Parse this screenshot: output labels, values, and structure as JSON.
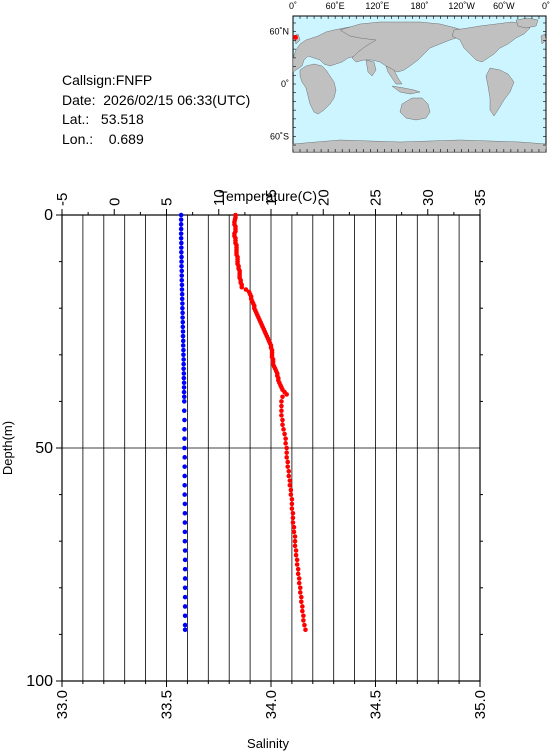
{
  "info": {
    "callsign": "Callsign:FNFP",
    "date": "Date:  2026/02/15 06:33(UTC)",
    "lat": "Lat.:   53.518",
    "lon": "Lon.:    0.689"
  },
  "map": {
    "top_labels": [
      "0˚",
      "60˚E",
      "120˚E",
      "180˚",
      "120˚W",
      "60˚W",
      "0˚"
    ],
    "left_labels": [
      "60˚N",
      "0˚",
      "60˚S"
    ],
    "station": {
      "lat": 53.518,
      "lon": 0.689
    },
    "colors": {
      "ocean": "#ccf5ff",
      "land": "#c0c0c0",
      "marker": "#ff0000"
    }
  },
  "chart_data": {
    "type": "scatter",
    "temperature_axis": {
      "label": "Temperature(C)",
      "range": [
        -5,
        35
      ],
      "ticks": [
        "-5",
        "0",
        "5",
        "10",
        "15",
        "20",
        "25",
        "30",
        "35"
      ]
    },
    "salinity_axis": {
      "label": "Salinity",
      "range": [
        33.0,
        35.0
      ],
      "ticks": [
        "33.0",
        "33.5",
        "34.0",
        "34.5",
        "35.0"
      ]
    },
    "depth_axis": {
      "label": "Depth(m)",
      "range": [
        0,
        100
      ],
      "ticks": [
        "0",
        "50",
        "100"
      ]
    },
    "series": [
      {
        "color": "#0000ff",
        "axis": "salinity",
        "points": [
          [
            33.57,
            0
          ],
          [
            33.57,
            1
          ],
          [
            33.57,
            2
          ],
          [
            33.57,
            3
          ],
          [
            33.57,
            4
          ],
          [
            33.57,
            5
          ],
          [
            33.571,
            6
          ],
          [
            33.571,
            7
          ],
          [
            33.571,
            8
          ],
          [
            33.572,
            9
          ],
          [
            33.572,
            10
          ],
          [
            33.572,
            11
          ],
          [
            33.573,
            12
          ],
          [
            33.573,
            13
          ],
          [
            33.573,
            14
          ],
          [
            33.574,
            15
          ],
          [
            33.574,
            16
          ],
          [
            33.575,
            17
          ],
          [
            33.575,
            18
          ],
          [
            33.576,
            19
          ],
          [
            33.576,
            20
          ],
          [
            33.577,
            21
          ],
          [
            33.577,
            22
          ],
          [
            33.578,
            23
          ],
          [
            33.578,
            24
          ],
          [
            33.579,
            25
          ],
          [
            33.579,
            26
          ],
          [
            33.58,
            27
          ],
          [
            33.58,
            28
          ],
          [
            33.581,
            29
          ],
          [
            33.581,
            30
          ],
          [
            33.582,
            31
          ],
          [
            33.582,
            32
          ],
          [
            33.582,
            33
          ],
          [
            33.583,
            34
          ],
          [
            33.583,
            35
          ],
          [
            33.584,
            36
          ],
          [
            33.584,
            37
          ],
          [
            33.584,
            38
          ],
          [
            33.585,
            39
          ],
          [
            33.585,
            40
          ],
          [
            33.585,
            42
          ],
          [
            33.586,
            44
          ],
          [
            33.586,
            46
          ],
          [
            33.586,
            48
          ],
          [
            33.586,
            50
          ],
          [
            33.587,
            52
          ],
          [
            33.587,
            54
          ],
          [
            33.587,
            56
          ],
          [
            33.587,
            58
          ],
          [
            33.587,
            60
          ],
          [
            33.588,
            62
          ],
          [
            33.588,
            64
          ],
          [
            33.588,
            66
          ],
          [
            33.588,
            68
          ],
          [
            33.588,
            70
          ],
          [
            33.589,
            72
          ],
          [
            33.589,
            74
          ],
          [
            33.589,
            76
          ],
          [
            33.589,
            78
          ],
          [
            33.589,
            80
          ],
          [
            33.589,
            82
          ],
          [
            33.589,
            84
          ],
          [
            33.589,
            86
          ],
          [
            33.589,
            88
          ],
          [
            33.589,
            89
          ]
        ]
      },
      {
        "color": "#ff0000",
        "axis": "temperature",
        "points": [
          [
            11.6,
            0
          ],
          [
            11.6,
            0.5
          ],
          [
            11.55,
            1
          ],
          [
            11.5,
            1.5
          ],
          [
            11.5,
            2
          ],
          [
            11.6,
            2.5
          ],
          [
            11.6,
            3
          ],
          [
            11.6,
            3.5
          ],
          [
            11.5,
            4
          ],
          [
            11.5,
            4.5
          ],
          [
            11.6,
            5
          ],
          [
            11.6,
            5.5
          ],
          [
            11.6,
            6
          ],
          [
            11.7,
            6.5
          ],
          [
            11.7,
            7
          ],
          [
            11.7,
            7.5
          ],
          [
            11.7,
            8
          ],
          [
            11.7,
            8.5
          ],
          [
            11.8,
            9
          ],
          [
            11.8,
            9.5
          ],
          [
            11.8,
            10
          ],
          [
            11.8,
            10.5
          ],
          [
            11.9,
            11
          ],
          [
            11.9,
            11.5
          ],
          [
            12.0,
            12
          ],
          [
            12.0,
            12.5
          ],
          [
            12.0,
            13
          ],
          [
            12.0,
            13.5
          ],
          [
            12.1,
            14
          ],
          [
            12.1,
            14.5
          ],
          [
            12.2,
            15
          ],
          [
            12.2,
            15.5
          ],
          [
            12.6,
            16
          ],
          [
            12.9,
            16.5
          ],
          [
            13.0,
            17
          ],
          [
            13.1,
            17.5
          ],
          [
            13.1,
            18
          ],
          [
            13.2,
            18.5
          ],
          [
            13.3,
            19
          ],
          [
            13.4,
            19.5
          ],
          [
            13.4,
            20
          ],
          [
            13.5,
            20.5
          ],
          [
            13.6,
            21
          ],
          [
            13.7,
            21.5
          ],
          [
            13.8,
            22
          ],
          [
            13.9,
            22.5
          ],
          [
            14.0,
            23
          ],
          [
            14.1,
            23.5
          ],
          [
            14.2,
            24
          ],
          [
            14.3,
            24.5
          ],
          [
            14.4,
            25
          ],
          [
            14.5,
            25.5
          ],
          [
            14.6,
            26
          ],
          [
            14.7,
            26.5
          ],
          [
            14.8,
            27
          ],
          [
            14.9,
            27.5
          ],
          [
            15.0,
            28
          ],
          [
            15.0,
            28.5
          ],
          [
            15.1,
            29
          ],
          [
            15.1,
            29.5
          ],
          [
            15.1,
            30
          ],
          [
            15.1,
            30.5
          ],
          [
            15.2,
            31
          ],
          [
            15.2,
            31.5
          ],
          [
            15.2,
            32
          ],
          [
            15.3,
            32.5
          ],
          [
            15.4,
            33
          ],
          [
            15.5,
            33.5
          ],
          [
            15.6,
            34
          ],
          [
            15.6,
            34.5
          ],
          [
            15.7,
            35
          ],
          [
            15.7,
            35.5
          ],
          [
            15.8,
            36
          ],
          [
            15.9,
            36.5
          ],
          [
            16.0,
            37
          ],
          [
            16.1,
            37.5
          ],
          [
            16.3,
            38
          ],
          [
            16.5,
            38.5
          ],
          [
            16.1,
            39
          ],
          [
            16.0,
            40
          ],
          [
            16.0,
            41
          ],
          [
            16.0,
            42
          ],
          [
            16.0,
            43
          ],
          [
            16.1,
            44
          ],
          [
            16.1,
            45
          ],
          [
            16.2,
            46
          ],
          [
            16.3,
            47
          ],
          [
            16.4,
            48
          ],
          [
            16.4,
            49
          ],
          [
            16.5,
            50
          ],
          [
            16.5,
            51
          ],
          [
            16.5,
            52
          ],
          [
            16.6,
            53
          ],
          [
            16.6,
            54
          ],
          [
            16.7,
            55
          ],
          [
            16.7,
            56
          ],
          [
            16.8,
            57
          ],
          [
            16.8,
            58
          ],
          [
            16.9,
            59
          ],
          [
            16.9,
            60
          ],
          [
            17.0,
            61
          ],
          [
            17.0,
            62
          ],
          [
            17.0,
            63
          ],
          [
            17.1,
            64
          ],
          [
            17.1,
            65
          ],
          [
            17.1,
            66
          ],
          [
            17.2,
            67
          ],
          [
            17.2,
            68
          ],
          [
            17.3,
            69
          ],
          [
            17.3,
            70
          ],
          [
            17.3,
            71
          ],
          [
            17.4,
            72
          ],
          [
            17.4,
            73
          ],
          [
            17.5,
            74
          ],
          [
            17.5,
            75
          ],
          [
            17.6,
            76
          ],
          [
            17.6,
            77
          ],
          [
            17.7,
            78
          ],
          [
            17.7,
            79
          ],
          [
            17.8,
            80
          ],
          [
            17.8,
            81
          ],
          [
            17.9,
            82
          ],
          [
            17.9,
            83
          ],
          [
            18.0,
            84
          ],
          [
            18.0,
            85
          ],
          [
            18.1,
            86
          ],
          [
            18.1,
            87
          ],
          [
            18.2,
            88
          ],
          [
            18.3,
            89
          ]
        ]
      }
    ],
    "grid": true
  }
}
